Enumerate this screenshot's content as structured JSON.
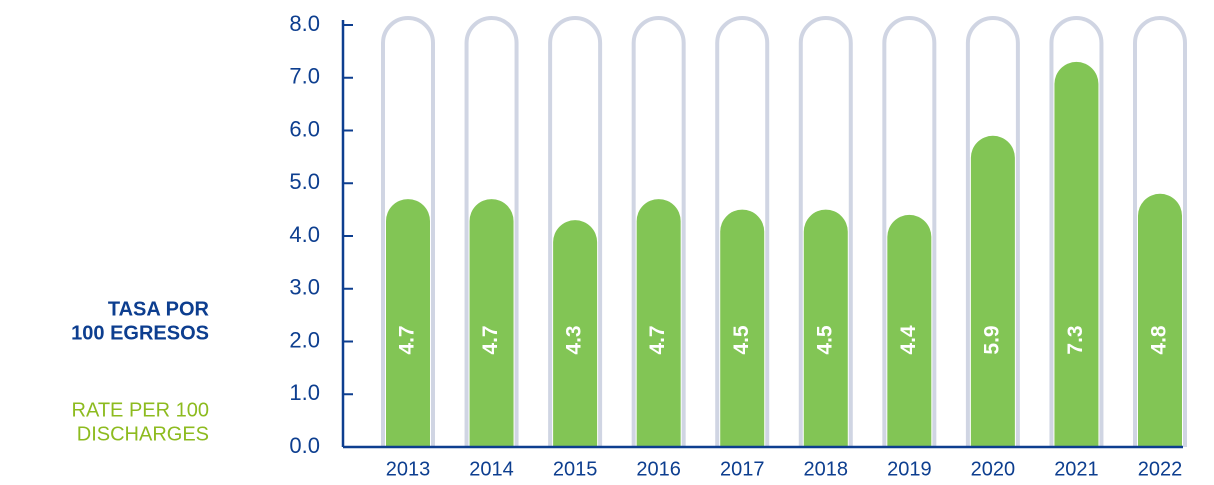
{
  "chart_data": {
    "type": "bar",
    "ylabel": [
      "TASA POR",
      "100 EGRESOS"
    ],
    "ylabel_en": [
      "RATE PER 100",
      "DISCHARGES"
    ],
    "categories": [
      "2013",
      "2014",
      "2015",
      "2016",
      "2017",
      "2018",
      "2019",
      "2020",
      "2021",
      "2022"
    ],
    "values": [
      4.7,
      4.7,
      4.3,
      4.7,
      4.5,
      4.5,
      4.4,
      5.9,
      7.3,
      4.8
    ],
    "color": "#82c555",
    "track_color": "#d0d5e3",
    "axis_color": "#0d3e8f",
    "ylim": [
      0,
      8
    ],
    "yticks": [
      {
        "value": 0,
        "label": "0.0"
      },
      {
        "value": 1,
        "label": "1.0"
      },
      {
        "value": 2,
        "label": "2.0"
      },
      {
        "value": 3,
        "label": "3.0"
      },
      {
        "value": 4,
        "label": "4.0"
      },
      {
        "value": 5,
        "label": "5.0"
      },
      {
        "value": 6,
        "label": "6.0"
      },
      {
        "value": 7,
        "label": "7.0"
      },
      {
        "value": 8,
        "label": "8.0"
      }
    ]
  }
}
